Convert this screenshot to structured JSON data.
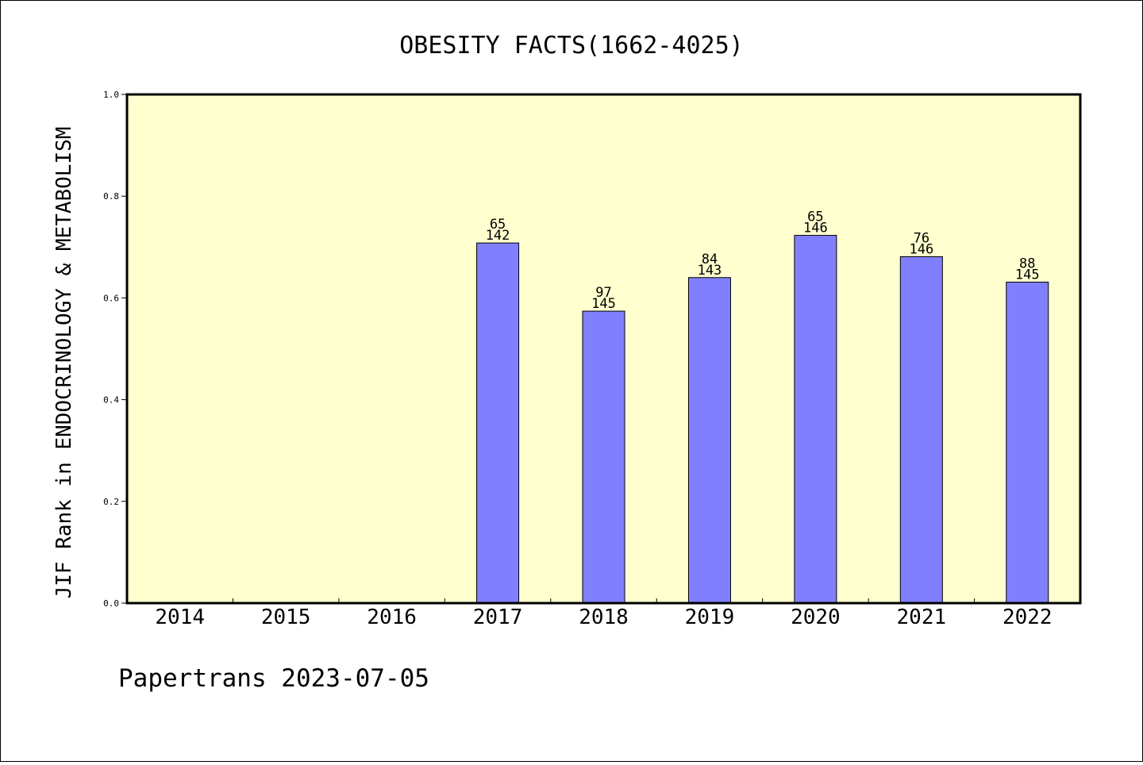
{
  "chart_data": {
    "type": "bar",
    "title": "OBESITY FACTS(1662-4025)",
    "ylabel": "JIF Rank in ENDOCRINOLOGY & METABOLISM",
    "xlabel": "",
    "categories": [
      "2014",
      "2015",
      "2016",
      "2017",
      "2018",
      "2019",
      "2020",
      "2021",
      "2022"
    ],
    "values": [
      null,
      null,
      null,
      0.708,
      0.574,
      0.64,
      0.723,
      0.681,
      0.631
    ],
    "bar_labels": [
      null,
      null,
      null,
      {
        "rank": "65",
        "total": "142"
      },
      {
        "rank": "97",
        "total": "145"
      },
      {
        "rank": "84",
        "total": "143"
      },
      {
        "rank": "65",
        "total": "146"
      },
      {
        "rank": "76",
        "total": "146"
      },
      {
        "rank": "88",
        "total": "145"
      }
    ],
    "ylim": [
      0,
      1.0
    ],
    "yticks": [
      "0.0",
      "0.2",
      "0.4",
      "0.6",
      "0.8",
      "1.0"
    ],
    "grid": false,
    "colors": {
      "plot_background": "#ffffd0",
      "bar_fill": "#8080ff",
      "bar_stroke": "#000000"
    }
  },
  "footer": "Papertrans 2023-07-05"
}
